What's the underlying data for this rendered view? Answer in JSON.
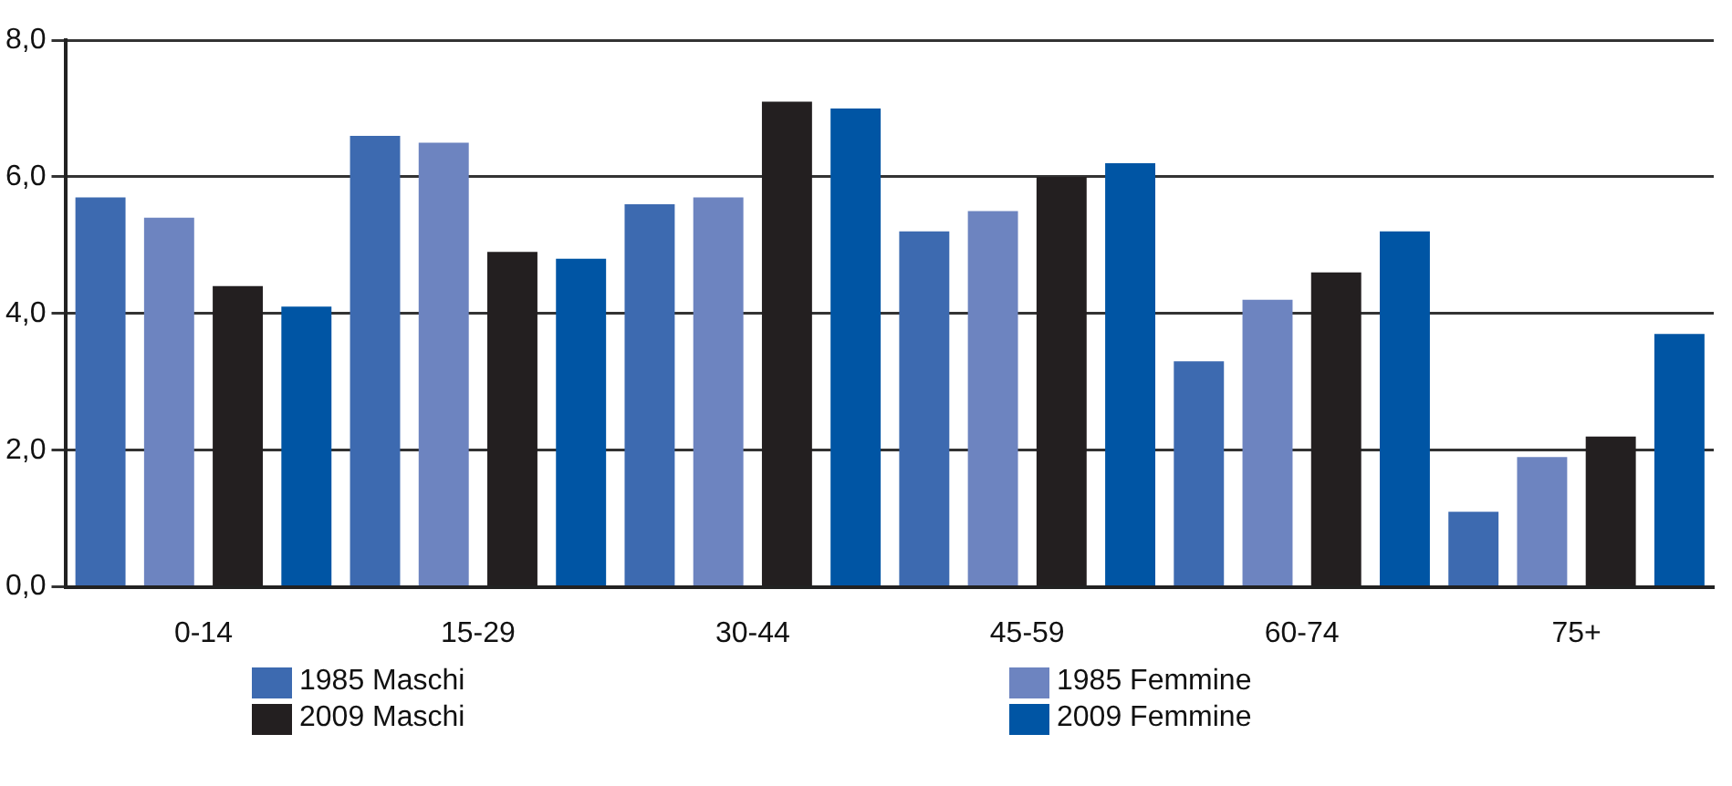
{
  "chart_data": {
    "type": "bar",
    "categories": [
      "0-14",
      "15-29",
      "30-44",
      "45-59",
      "60-74",
      "75+"
    ],
    "series": [
      {
        "name": "1985 Maschi",
        "color": "#3d6ab0",
        "values": [
          5.7,
          6.6,
          5.6,
          5.2,
          3.3,
          1.1
        ]
      },
      {
        "name": "1985 Femmine",
        "color": "#6d84c0",
        "values": [
          5.4,
          6.5,
          5.7,
          5.5,
          4.2,
          1.9
        ]
      },
      {
        "name": "2009 Maschi",
        "color": "#231f20",
        "values": [
          4.4,
          4.9,
          7.1,
          6.0,
          4.6,
          2.2
        ]
      },
      {
        "name": "2009 Femmine",
        "color": "#0055a4",
        "values": [
          4.1,
          4.8,
          7.0,
          6.2,
          5.2,
          3.7
        ]
      }
    ],
    "ylim": [
      0,
      8
    ],
    "yticks": [
      {
        "value": 0,
        "label": "0,0"
      },
      {
        "value": 2,
        "label": "2,0"
      },
      {
        "value": 4,
        "label": "4,0"
      },
      {
        "value": 6,
        "label": "6,0"
      },
      {
        "value": 8,
        "label": "8,0"
      }
    ],
    "grid": "y",
    "legend": "bottom"
  }
}
